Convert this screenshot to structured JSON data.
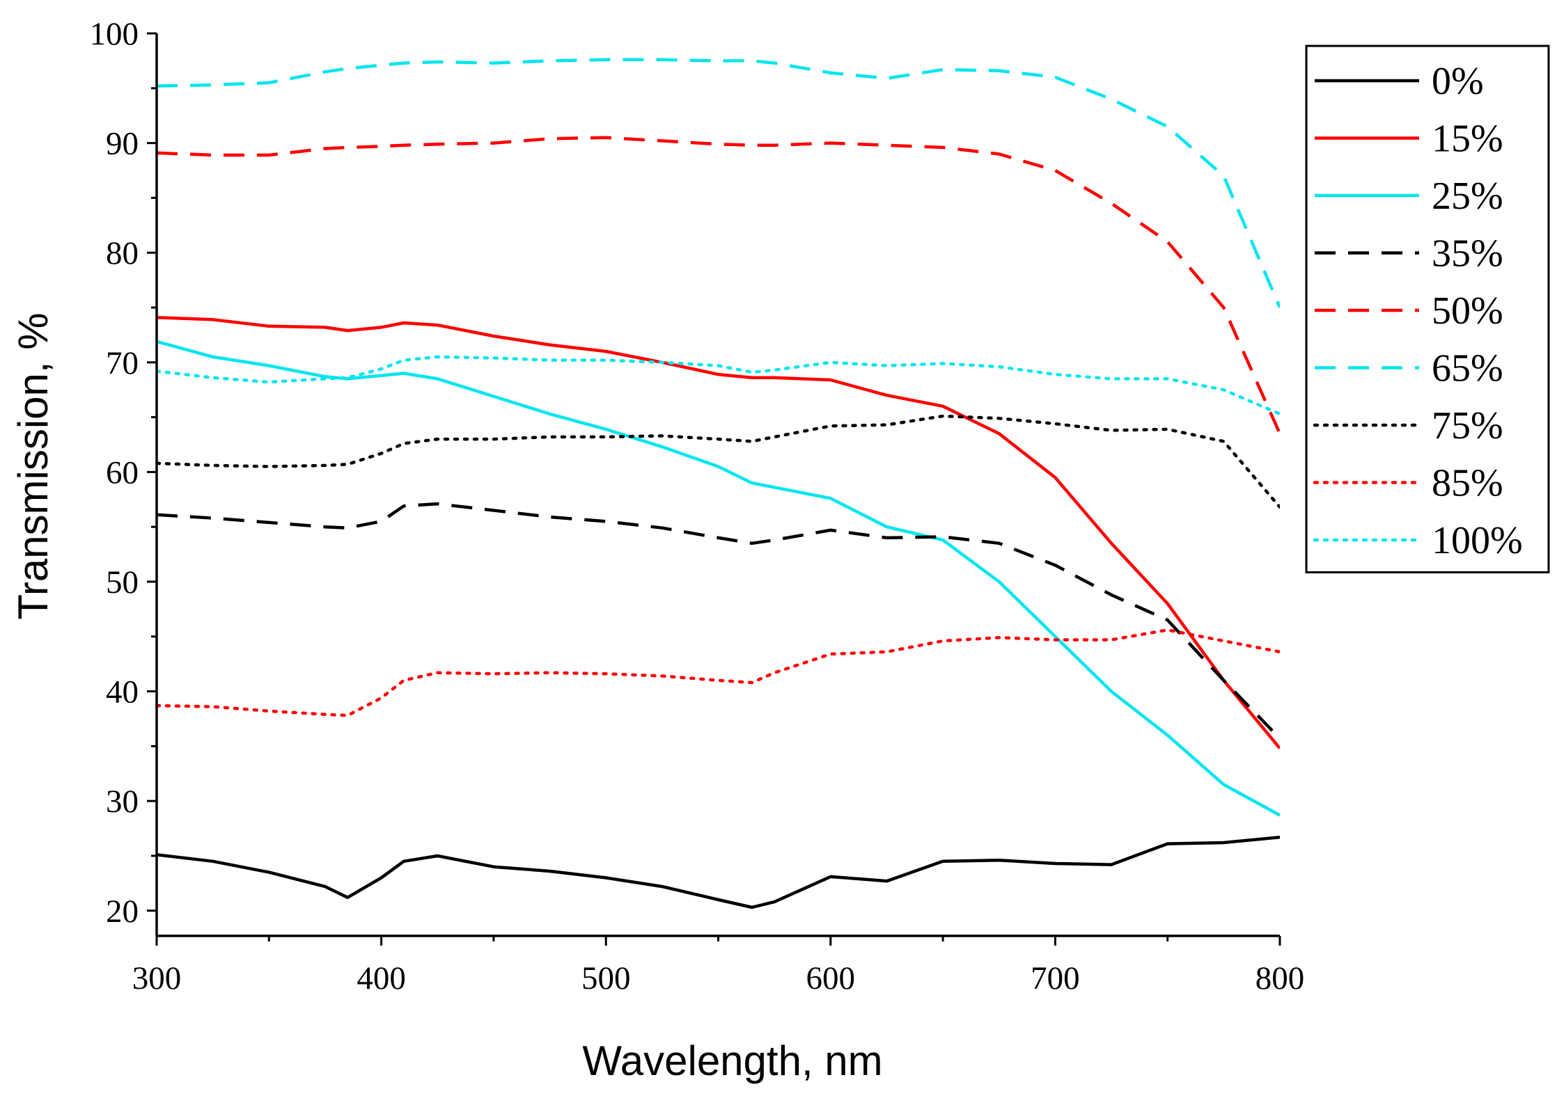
{
  "chart_data": {
    "type": "line",
    "title": "",
    "xlabel": "Wavelength, nm",
    "ylabel": "Transmission, %",
    "xlim": [
      300,
      800
    ],
    "ylim": [
      17.7,
      100
    ],
    "x_ticks": [
      300,
      400,
      500,
      600,
      700,
      800
    ],
    "y_ticks": [
      20,
      30,
      40,
      50,
      60,
      70,
      80,
      90,
      100
    ],
    "x_tick_labels": [
      "300",
      "400",
      "500",
      "600",
      "700",
      "800"
    ],
    "y_tick_labels": [
      "20",
      "30",
      "40",
      "50",
      "60",
      "70",
      "80",
      "90",
      "100"
    ],
    "grid": false,
    "legend_position": "top-right",
    "x": [
      300,
      325,
      350,
      375,
      385,
      400,
      410,
      425,
      450,
      475,
      500,
      525,
      550,
      565,
      575,
      600,
      625,
      650,
      675,
      700,
      725,
      750,
      775,
      800
    ],
    "series": [
      {
        "name": "0%",
        "color": "#000000",
        "style": "solid",
        "values": [
          25.1,
          24.5,
          23.5,
          22.2,
          21.2,
          23.0,
          24.5,
          25.0,
          24.0,
          23.6,
          23.0,
          22.2,
          21.0,
          20.3,
          20.8,
          23.1,
          22.7,
          24.5,
          24.6,
          24.3,
          24.2,
          26.1,
          26.2,
          26.7
        ]
      },
      {
        "name": "15%",
        "color": "#ff0000",
        "style": "solid",
        "values": [
          74.1,
          73.9,
          73.3,
          73.2,
          72.9,
          73.2,
          73.6,
          73.4,
          72.4,
          71.6,
          71.0,
          70.0,
          68.9,
          68.6,
          68.6,
          68.4,
          67.0,
          66.0,
          63.5,
          59.5,
          53.5,
          48.0,
          41.0,
          34.8
        ]
      },
      {
        "name": "25%",
        "color": "#00e5ee",
        "style": "solid",
        "values": [
          71.9,
          70.5,
          69.7,
          68.7,
          68.5,
          68.8,
          69.0,
          68.5,
          66.9,
          65.3,
          63.9,
          62.3,
          60.5,
          59.0,
          58.6,
          57.6,
          55.0,
          53.8,
          50.0,
          45.0,
          40.0,
          36.0,
          31.5,
          28.7
        ]
      },
      {
        "name": "35%",
        "color": "#000000",
        "style": "dashed",
        "values": [
          56.1,
          55.8,
          55.4,
          55.0,
          54.9,
          55.5,
          56.9,
          57.1,
          56.5,
          55.9,
          55.5,
          54.9,
          54.0,
          53.5,
          53.8,
          54.7,
          54.0,
          54.1,
          53.5,
          51.5,
          48.8,
          46.5,
          41.0,
          35.7
        ]
      },
      {
        "name": "50%",
        "color": "#ff0000",
        "style": "dashed",
        "values": [
          89.1,
          88.9,
          88.9,
          89.5,
          89.6,
          89.7,
          89.8,
          89.9,
          90.0,
          90.4,
          90.5,
          90.2,
          89.9,
          89.8,
          89.8,
          90.0,
          89.8,
          89.6,
          89.0,
          87.5,
          84.5,
          81.0,
          75.0,
          63.5
        ]
      },
      {
        "name": "65%",
        "color": "#00e5ee",
        "style": "dashed",
        "values": [
          95.2,
          95.3,
          95.5,
          96.5,
          96.8,
          97.1,
          97.3,
          97.4,
          97.3,
          97.5,
          97.6,
          97.6,
          97.5,
          97.5,
          97.3,
          96.4,
          95.9,
          96.7,
          96.6,
          96.0,
          94.0,
          91.5,
          87.0,
          75.0
        ]
      },
      {
        "name": "75%",
        "color": "#000000",
        "style": "dotted",
        "values": [
          60.8,
          60.6,
          60.5,
          60.6,
          60.7,
          61.7,
          62.6,
          63.0,
          63.0,
          63.2,
          63.2,
          63.3,
          63.0,
          62.8,
          63.2,
          64.2,
          64.3,
          65.1,
          64.9,
          64.4,
          63.8,
          63.9,
          62.8,
          56.8
        ]
      },
      {
        "name": "85%",
        "color": "#ff0000",
        "style": "dotted",
        "values": [
          38.7,
          38.6,
          38.2,
          37.9,
          37.8,
          39.4,
          41.0,
          41.7,
          41.6,
          41.7,
          41.6,
          41.4,
          41.0,
          40.8,
          41.7,
          43.4,
          43.6,
          44.6,
          44.9,
          44.7,
          44.7,
          45.6,
          44.6,
          43.6
        ]
      },
      {
        "name": "100%",
        "color": "#00e5ee",
        "style": "dotted",
        "values": [
          69.2,
          68.6,
          68.2,
          68.5,
          68.6,
          69.4,
          70.2,
          70.5,
          70.4,
          70.2,
          70.2,
          70.0,
          69.7,
          69.1,
          69.3,
          70.0,
          69.7,
          69.9,
          69.6,
          68.9,
          68.5,
          68.5,
          67.5,
          65.3
        ]
      }
    ]
  }
}
